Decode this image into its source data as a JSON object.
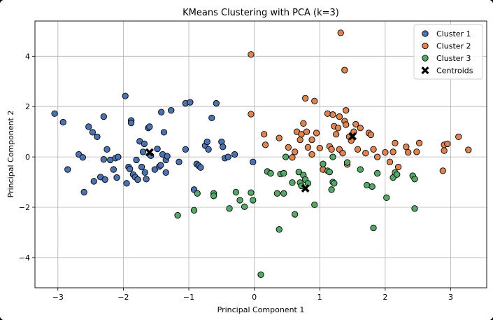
{
  "chart_data": {
    "type": "scatter",
    "title": "KMeans Clustering with PCA (k=3)",
    "xlabel": "Principal Component 1",
    "ylabel": "Principal Component 2",
    "xlim": [
      -3.35,
      3.55
    ],
    "ylim": [
      -5.2,
      5.4
    ],
    "xticks": [
      -3,
      -2,
      -1,
      0,
      1,
      2,
      3
    ],
    "xtick_labels": [
      "−3",
      "−2",
      "−1",
      "0",
      "1",
      "2",
      "3"
    ],
    "yticks": [
      -4,
      -2,
      0,
      2,
      4
    ],
    "ytick_labels": [
      "−4",
      "−2",
      "0",
      "2",
      "4"
    ],
    "grid": true,
    "legend_position": "top-right",
    "series": [
      {
        "name": "Cluster 1",
        "color": "#4c72b0",
        "points": [
          [
            -3.05,
            1.72
          ],
          [
            -2.92,
            1.38
          ],
          [
            -2.85,
            -0.5
          ],
          [
            -2.68,
            0.1
          ],
          [
            -2.62,
            -0.02
          ],
          [
            -2.6,
            -1.4
          ],
          [
            -2.53,
            1.2
          ],
          [
            -2.47,
            0.98
          ],
          [
            -2.45,
            -0.97
          ],
          [
            -2.4,
            0.8
          ],
          [
            -2.35,
            -0.8
          ],
          [
            -2.3,
            1.6
          ],
          [
            -2.3,
            -0.1
          ],
          [
            -2.28,
            -0.9
          ],
          [
            -2.25,
            0.3
          ],
          [
            -2.2,
            -0.12
          ],
          [
            -2.15,
            -0.5
          ],
          [
            -2.12,
            -0.05
          ],
          [
            -2.08,
            0.0
          ],
          [
            -2.1,
            -0.82
          ],
          [
            -1.97,
            2.42
          ],
          [
            -1.95,
            -1.05
          ],
          [
            -1.92,
            -0.4
          ],
          [
            -1.9,
            -0.48
          ],
          [
            -1.88,
            1.45
          ],
          [
            -1.88,
            1.35
          ],
          [
            -1.85,
            -0.7
          ],
          [
            -1.82,
            -0.8
          ],
          [
            -1.8,
            -0.12
          ],
          [
            -1.78,
            -0.9
          ],
          [
            -1.75,
            0.62
          ],
          [
            -1.72,
            -0.4
          ],
          [
            -1.7,
            0.2
          ],
          [
            -1.68,
            0.52
          ],
          [
            -1.67,
            -0.62
          ],
          [
            -1.65,
            -0.88
          ],
          [
            -1.62,
            1.15
          ],
          [
            -1.6,
            1.2
          ],
          [
            -1.58,
            0.05
          ],
          [
            -1.52,
            -0.5
          ],
          [
            -1.48,
            0.32
          ],
          [
            -1.45,
            -0.38
          ],
          [
            -1.43,
            -0.33
          ],
          [
            -1.42,
            1.78
          ],
          [
            -1.4,
            0.1
          ],
          [
            -1.38,
            0.98
          ],
          [
            -1.35,
            -0.12
          ],
          [
            -1.35,
            -0.62
          ],
          [
            -1.33,
            0.03
          ],
          [
            -1.27,
            1.85
          ],
          [
            -1.15,
            -0.2
          ],
          [
            -1.05,
            0.3
          ],
          [
            -1.05,
            2.13
          ],
          [
            -0.98,
            2.17
          ],
          [
            -0.92,
            -1.3
          ],
          [
            -0.88,
            -0.28
          ],
          [
            -0.85,
            -0.35
          ],
          [
            -0.82,
            -0.42
          ],
          [
            -0.75,
            0.45
          ],
          [
            -0.72,
            0.6
          ],
          [
            -0.7,
            0.3
          ],
          [
            -0.65,
            1.55
          ],
          [
            -0.58,
            2.13
          ],
          [
            -0.5,
            0.6
          ],
          [
            -0.48,
            0.4
          ],
          [
            -0.45,
            -0.05
          ],
          [
            -0.3,
            0.1
          ],
          [
            -0.02,
            -0.2
          ],
          [
            -0.4,
            0.0
          ]
        ]
      },
      {
        "name": "Cluster 2",
        "color": "#dd8452",
        "points": [
          [
            -0.05,
            4.07
          ],
          [
            -0.05,
            1.7
          ],
          [
            0.15,
            0.9
          ],
          [
            0.17,
            0.48
          ],
          [
            0.38,
            0.75
          ],
          [
            0.52,
            0.38
          ],
          [
            0.58,
            -0.02
          ],
          [
            0.62,
            0.2
          ],
          [
            0.65,
            1.0
          ],
          [
            0.7,
            0.68
          ],
          [
            0.72,
            0.9
          ],
          [
            0.75,
            1.33
          ],
          [
            0.78,
            2.33
          ],
          [
            0.8,
            1.0
          ],
          [
            0.82,
            0.38
          ],
          [
            0.88,
            0.1
          ],
          [
            0.88,
            0.68
          ],
          [
            0.92,
            2.22
          ],
          [
            0.95,
            0.95
          ],
          [
            1.0,
            0.35
          ],
          [
            1.05,
            -0.5
          ],
          [
            1.12,
            1.72
          ],
          [
            1.15,
            0.42
          ],
          [
            1.18,
            0.3
          ],
          [
            1.2,
            1.68
          ],
          [
            1.22,
            1.22
          ],
          [
            1.25,
            0.9
          ],
          [
            1.28,
            1.15
          ],
          [
            1.3,
            1.6
          ],
          [
            1.3,
            0.3
          ],
          [
            1.32,
            4.93
          ],
          [
            1.35,
            0.15
          ],
          [
            1.38,
            3.45
          ],
          [
            1.38,
            1.42
          ],
          [
            1.4,
            1.28
          ],
          [
            1.4,
            1.85
          ],
          [
            1.42,
            -0.3
          ],
          [
            1.45,
            0.8
          ],
          [
            1.48,
            0.65
          ],
          [
            1.52,
            1.0
          ],
          [
            1.55,
            1.3
          ],
          [
            1.58,
            0.3
          ],
          [
            1.62,
            1.15
          ],
          [
            1.7,
            0.15
          ],
          [
            1.75,
            0.95
          ],
          [
            1.78,
            0.88
          ],
          [
            1.82,
            0.3
          ],
          [
            1.88,
            0.0
          ],
          [
            2.0,
            0.18
          ],
          [
            2.07,
            -0.2
          ],
          [
            2.12,
            0.2
          ],
          [
            2.15,
            0.55
          ],
          [
            2.2,
            -0.4
          ],
          [
            2.32,
            0.4
          ],
          [
            2.35,
            0.18
          ],
          [
            2.48,
            0.2
          ],
          [
            2.52,
            0.55
          ],
          [
            2.88,
            -0.55
          ],
          [
            2.9,
            0.48
          ],
          [
            2.9,
            0.25
          ],
          [
            2.95,
            0.52
          ],
          [
            3.12,
            0.8
          ],
          [
            3.27,
            0.28
          ]
        ]
      },
      {
        "name": "Cluster 3",
        "color": "#55a868",
        "points": [
          [
            -1.17,
            -2.32
          ],
          [
            -0.92,
            -2.12
          ],
          [
            -0.87,
            -1.45
          ],
          [
            -0.62,
            -1.45
          ],
          [
            -0.62,
            -1.55
          ],
          [
            -0.38,
            -2.05
          ],
          [
            -0.28,
            -1.4
          ],
          [
            -0.22,
            -1.72
          ],
          [
            -0.15,
            -1.98
          ],
          [
            -0.05,
            -1.42
          ],
          [
            -0.02,
            -1.72
          ],
          [
            0.1,
            -4.68
          ],
          [
            0.2,
            -0.58
          ],
          [
            0.25,
            -0.65
          ],
          [
            0.35,
            -1.45
          ],
          [
            0.38,
            -2.88
          ],
          [
            0.4,
            -0.68
          ],
          [
            0.45,
            -0.65
          ],
          [
            0.45,
            -1.45
          ],
          [
            0.48,
            0.0
          ],
          [
            0.58,
            -1.02
          ],
          [
            0.62,
            -2.28
          ],
          [
            0.68,
            -0.6
          ],
          [
            0.7,
            -1.02
          ],
          [
            0.72,
            -1.15
          ],
          [
            0.75,
            -0.72
          ],
          [
            0.78,
            -0.9
          ],
          [
            0.82,
            -1.05
          ],
          [
            0.92,
            -1.9
          ],
          [
            1.05,
            -0.28
          ],
          [
            1.12,
            -0.55
          ],
          [
            1.15,
            -0.6
          ],
          [
            1.18,
            -1.3
          ],
          [
            1.2,
            -1.0
          ],
          [
            1.22,
            -1.05
          ],
          [
            1.2,
            0.0
          ],
          [
            1.42,
            -0.22
          ],
          [
            1.62,
            -0.5
          ],
          [
            1.72,
            -1.12
          ],
          [
            1.8,
            -1.18
          ],
          [
            1.82,
            -2.82
          ],
          [
            1.88,
            -0.65
          ],
          [
            2.02,
            -1.62
          ],
          [
            2.12,
            -0.82
          ],
          [
            2.15,
            -0.62
          ],
          [
            2.18,
            -0.7
          ],
          [
            2.42,
            -0.75
          ],
          [
            2.45,
            -0.88
          ],
          [
            2.45,
            -2.05
          ]
        ]
      }
    ],
    "centroids": {
      "name": "Centroids",
      "color": "#000000",
      "marker": "X",
      "points": [
        [
          -1.6,
          0.18
        ],
        [
          0.78,
          -1.25
        ],
        [
          1.5,
          0.82
        ]
      ]
    }
  }
}
